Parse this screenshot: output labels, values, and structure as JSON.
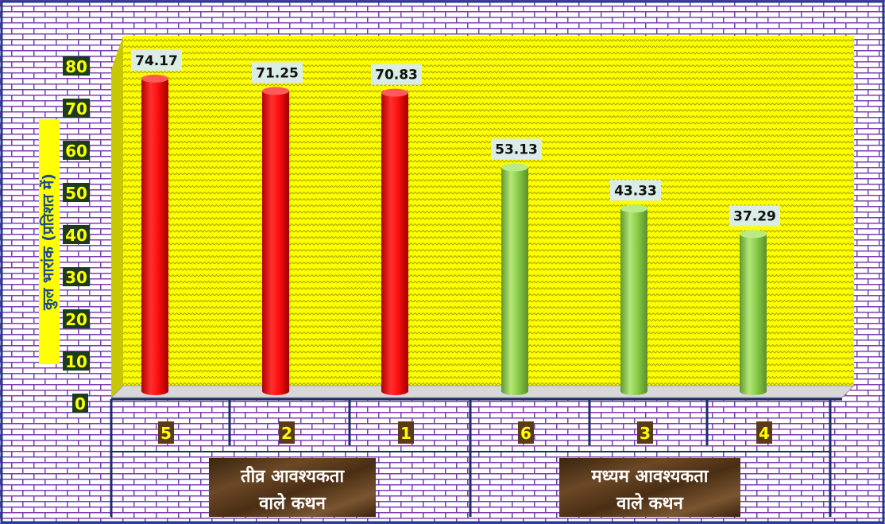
{
  "chart_data": {
    "type": "bar",
    "title": "",
    "ylabel": "कुल भारांक (प्रतिशत में)",
    "xlabel": "",
    "ylim": [
      0,
      80
    ],
    "yticks": [
      "0",
      "10",
      "20",
      "30",
      "40",
      "50",
      "60",
      "70",
      "80"
    ],
    "categories": [
      "5",
      "2",
      "1",
      "6",
      "3",
      "4"
    ],
    "values": [
      74.17,
      71.25,
      70.83,
      53.13,
      43.33,
      37.29
    ],
    "value_labels": [
      "74.17",
      "71.25",
      "70.83",
      "53.13",
      "43.33",
      "37.29"
    ],
    "groups": [
      {
        "label_line1": "तीव्र आवश्यकता",
        "label_line2": "वाले कथन",
        "count": 3,
        "color": "#ff1111"
      },
      {
        "label_line1": "मध्यम आवश्यकता",
        "label_line2": "वाले कथन",
        "count": 3,
        "color": "#8cd04a"
      }
    ],
    "grid": false,
    "legend": "none"
  },
  "colors": {
    "plot_background": "#ffff00",
    "outer_background": "#7030a0",
    "axis_line": "#1f2a6b",
    "tick_label_text": "#ffff00",
    "tick_label_box": "#1d3b1d",
    "ylabel_box": "#ffff00",
    "group_label_box": "#5b3a1a",
    "group_label_text": "#ffffff",
    "value_label_box": "#d9ece6"
  }
}
